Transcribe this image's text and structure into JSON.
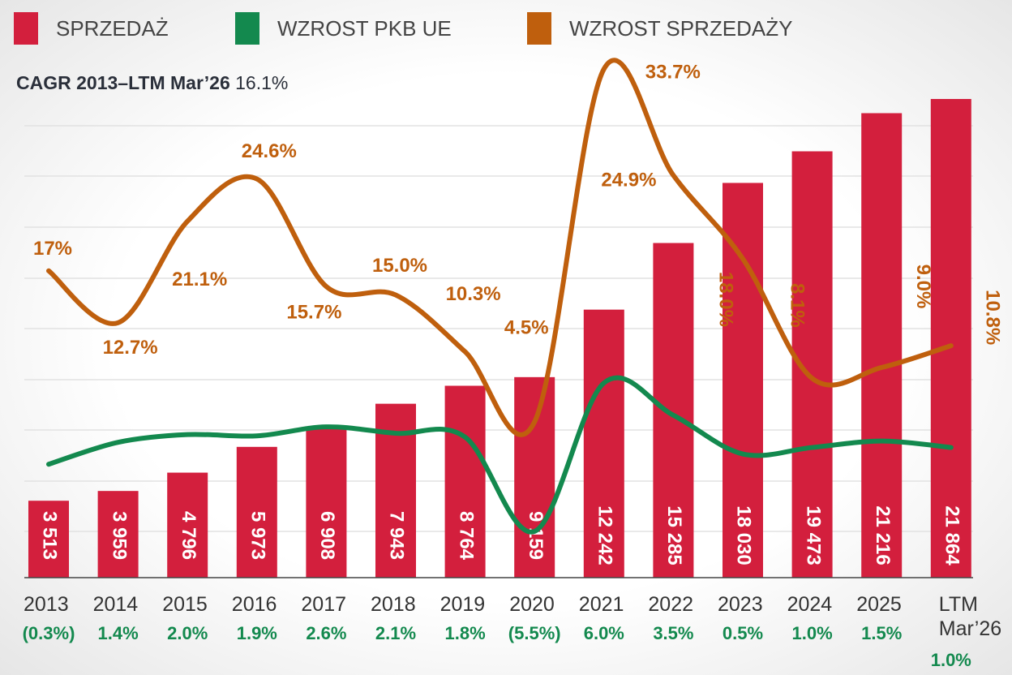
{
  "chart_data": {
    "type": "bar-line",
    "cagr_label": "CAGR 2013–LTM Mar’26",
    "cagr_value": "16.1%",
    "categories": [
      "2013",
      "2014",
      "2015",
      "2016",
      "2017",
      "2018",
      "2019",
      "2020",
      "2021",
      "2022",
      "2023",
      "2024",
      "2025",
      "LTM Mar’26"
    ],
    "series": [
      {
        "name": "SPRZEDAŻ",
        "type": "bar",
        "color": "#d31f3d",
        "values": [
          3513,
          3959,
          4796,
          5973,
          6908,
          7943,
          8764,
          9159,
          12242,
          15285,
          18030,
          19473,
          21216,
          21864
        ],
        "value_labels": [
          "3 513",
          "3 959",
          "4 796",
          "5 973",
          "6 908",
          "7 943",
          "8 764",
          "9 159",
          "12 242",
          "15 285",
          "18 030",
          "19 473",
          "21 216",
          "21 864"
        ]
      },
      {
        "name": "WZROST PKB UE",
        "type": "line",
        "color": "#13894e",
        "values": [
          -0.3,
          1.4,
          2.0,
          1.9,
          2.6,
          2.1,
          1.8,
          -5.5,
          6.0,
          3.5,
          0.5,
          1.0,
          1.5,
          1.0
        ],
        "value_labels": [
          "(0.3%)",
          "1.4%",
          "2.0%",
          "1.9%",
          "2.6%",
          "2.1%",
          "1.8%",
          "(5.5%)",
          "6.0%",
          "3.5%",
          "0.5%",
          "1.0%",
          "1.5%",
          "1.0%"
        ]
      },
      {
        "name": "WZROST SPRZEDAŻY",
        "type": "line",
        "color": "#bf5f0d",
        "values": [
          17,
          12.7,
          21.1,
          24.6,
          15.7,
          15.0,
          10.3,
          4.5,
          33.7,
          24.9,
          18.0,
          8.1,
          9.0,
          10.8
        ],
        "value_labels": [
          "17%",
          "12.7%",
          "21.1%",
          "24.6%",
          "15.7%",
          "15.0%",
          "10.3%",
          "4.5%",
          "33.7%",
          "24.9%",
          "18.0%",
          "8.1%",
          "9.0%",
          "10.8%"
        ]
      }
    ]
  }
}
